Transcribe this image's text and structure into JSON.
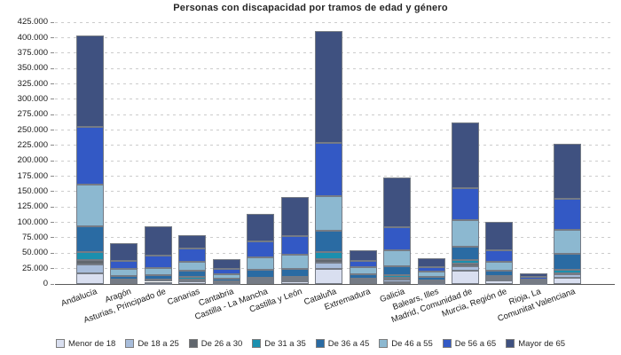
{
  "title": "Personas con discapacidad por tramos de edad y género",
  "chart_data": {
    "type": "bar",
    "stacked": true,
    "title": "Personas con discapacidad por tramos de edad y género",
    "xlabel": "",
    "ylabel": "",
    "ylim": [
      0,
      425000
    ],
    "ytick_step": 25000,
    "ytick_labels": [
      "0",
      "25.000",
      "50.000",
      "75.000",
      "100.000",
      "125.000",
      "150.000",
      "175.000",
      "200.000",
      "225.000",
      "250.000",
      "275.000",
      "300.000",
      "325.000",
      "350.000",
      "375.000",
      "400.000",
      "425.000"
    ],
    "grid": "horizontal-dashed",
    "legend_position": "bottom",
    "categories": [
      "Andalucía",
      "Aragón",
      "Asturias, Principado de",
      "Canarias",
      "Cantabria",
      "Castilla - La Mancha",
      "Castilla y León",
      "Cataluña",
      "Extremadura",
      "Galicia",
      "Balears, Illes",
      "Madrid, Comunidad de",
      "Murcia, Región de",
      "Rioja, La",
      "Comunitat Valenciana"
    ],
    "series": [
      {
        "name": "Menor de 18",
        "color": "#d9dff0",
        "values": [
          17000,
          2500,
          1500,
          4300,
          1400,
          3000,
          4000,
          24000,
          3200,
          2900,
          2000,
          21700,
          6000,
          1200,
          10600
        ]
      },
      {
        "name": "De 18 a 25",
        "color": "#a8bddb",
        "values": [
          14500,
          2000,
          1300,
          2300,
          1100,
          3000,
          3500,
          11000,
          2300,
          3700,
          1500,
          6800,
          2500,
          600,
          4800
        ]
      },
      {
        "name": "De 26 a 30",
        "color": "#61676e",
        "values": [
          7000,
          1000,
          800,
          1000,
          500,
          1500,
          1500,
          6000,
          900,
          3500,
          700,
          4700,
          1300,
          300,
          2400
        ]
      },
      {
        "name": "De 31 a 35",
        "color": "#1b8fae",
        "values": [
          14000,
          2200,
          3300,
          3500,
          1200,
          3000,
          3000,
          11500,
          2300,
          4300,
          2000,
          6200,
          2600,
          700,
          4900
        ]
      },
      {
        "name": "De 36 a 45",
        "color": "#2a6ba3",
        "values": [
          41800,
          5700,
          7300,
          10100,
          4000,
          12000,
          13000,
          34000,
          7200,
          14500,
          5800,
          21700,
          9600,
          1900,
          26400
        ]
      },
      {
        "name": "De 46 a 55",
        "color": "#8cb8d0",
        "values": [
          67800,
          10600,
          12100,
          15300,
          7200,
          20800,
          22600,
          56500,
          12000,
          25400,
          8200,
          42400,
          13500,
          3200,
          38500
        ]
      },
      {
        "name": "De 56 a 65",
        "color": "#3359c5",
        "values": [
          93700,
          13500,
          20200,
          21600,
          8700,
          25900,
          30300,
          87000,
          9600,
          37500,
          7200,
          52300,
          19200,
          3200,
          50500
        ]
      },
      {
        "name": "Mayor de 65",
        "color": "#3f5180",
        "values": [
          147600,
          28900,
          47000,
          21700,
          15900,
          45000,
          63900,
          181000,
          16800,
          81800,
          14400,
          106300,
          46300,
          5900,
          89900
        ]
      }
    ]
  }
}
